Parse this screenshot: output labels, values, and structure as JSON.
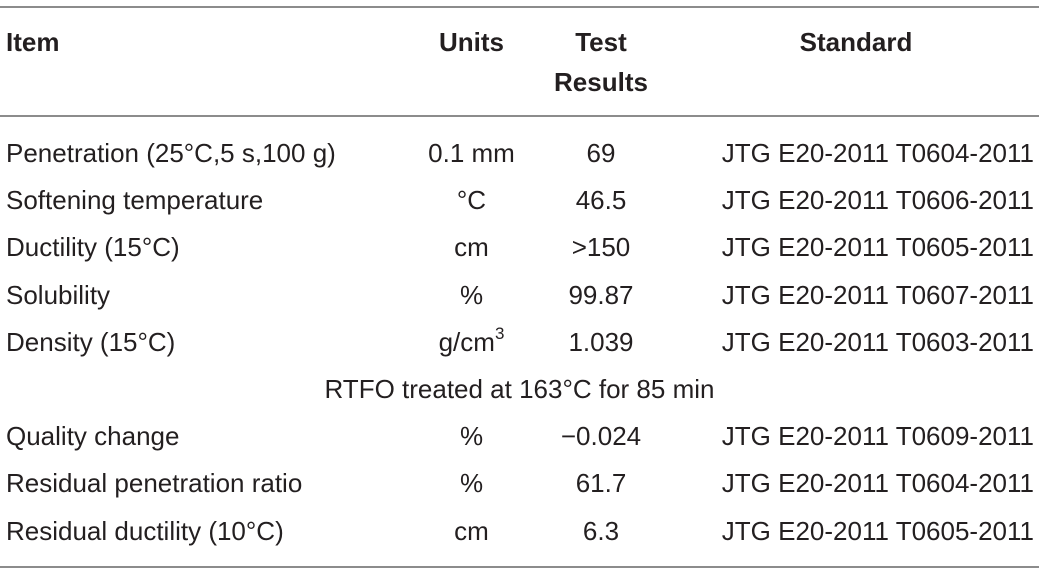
{
  "table": {
    "headers": {
      "item": "Item",
      "units": "Units",
      "test_results_line1": "Test",
      "test_results_line2": "Results",
      "standard": "Standard"
    },
    "rows": [
      {
        "item": "Penetration (25°C,5 s,100 g)",
        "units": "0.1 mm",
        "units_sup": "",
        "result": "69",
        "standard": "JTG E20-2011 T0604-2011"
      },
      {
        "item": "Softening temperature",
        "units": "°C",
        "units_sup": "",
        "result": "46.5",
        "standard": "JTG E20-2011 T0606-2011"
      },
      {
        "item": "Ductility (15°C)",
        "units": "cm",
        "units_sup": "",
        "result": ">150",
        "standard": "JTG E20-2011 T0605-2011"
      },
      {
        "item": "Solubility",
        "units": "%",
        "units_sup": "",
        "result": "99.87",
        "standard": "JTG E20-2011 T0607-2011"
      },
      {
        "item": "Density (15°C)",
        "units": "g/cm",
        "units_sup": "3",
        "result": "1.039",
        "standard": "JTG E20-2011 T0603-2011"
      }
    ],
    "section_label": "RTFO treated at 163°C for 85 min",
    "rows_after": [
      {
        "item": "Quality change",
        "units": "%",
        "units_sup": "",
        "result": "−0.024",
        "standard": "JTG E20-2011 T0609-2011"
      },
      {
        "item": "Residual penetration ratio",
        "units": "%",
        "units_sup": "",
        "result": "61.7",
        "standard": "JTG E20-2011 T0604-2011"
      },
      {
        "item": "Residual ductility (10°C)",
        "units": "cm",
        "units_sup": "",
        "result": "6.3",
        "standard": "JTG E20-2011 T0605-2011"
      }
    ]
  }
}
